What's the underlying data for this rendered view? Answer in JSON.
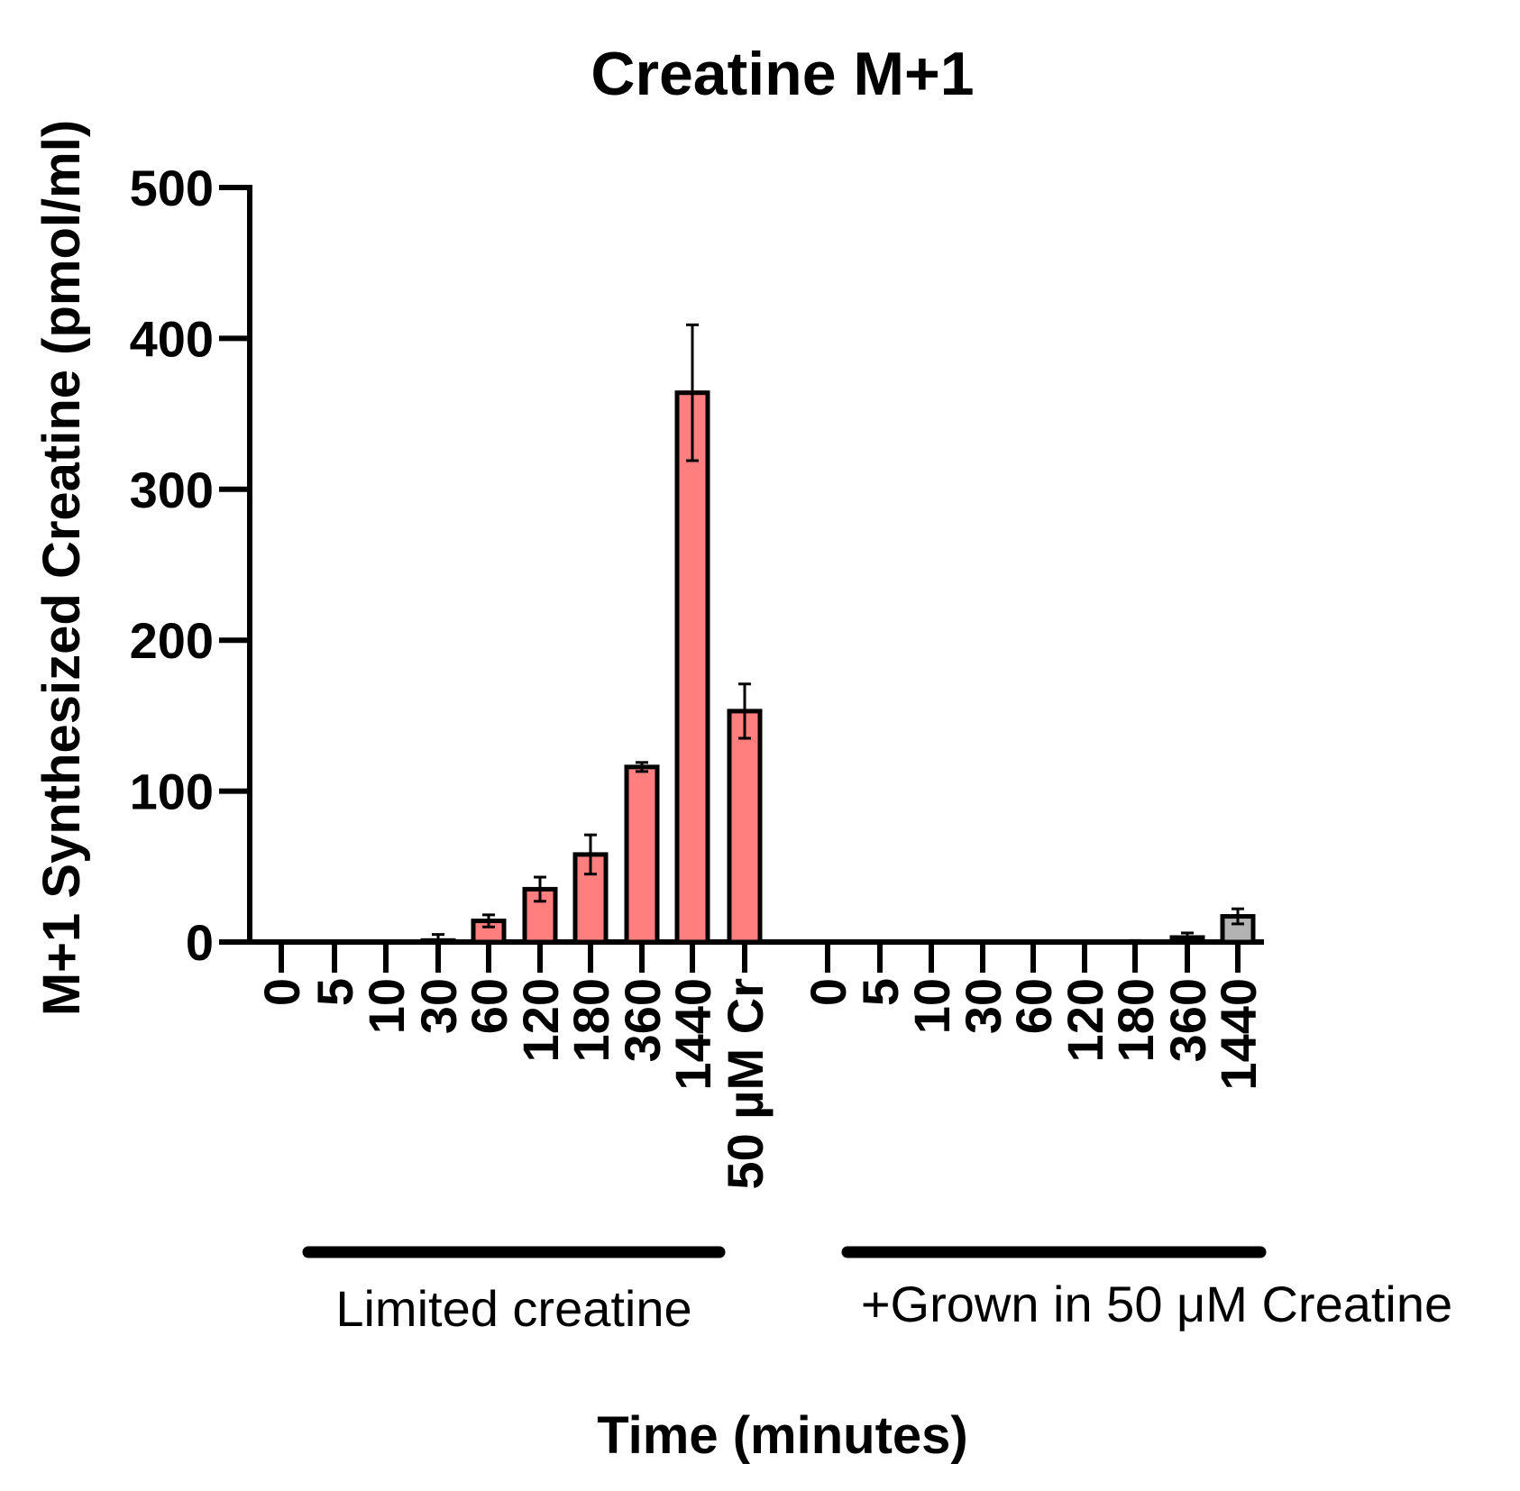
{
  "chart_data": {
    "type": "bar",
    "title": "Creatine M+1",
    "xlabel": "Time (minutes)",
    "ylabel": "M+1 Synthesized Creatine (pmol/ml)",
    "ylim": [
      0,
      500
    ],
    "yticks": [
      "0",
      "100",
      "200",
      "300",
      "400",
      "500"
    ],
    "grid": false,
    "groups": [
      {
        "label": "Limited creatine",
        "color": "#ff7f7f",
        "categories": [
          "0",
          "5",
          "10",
          "30",
          "60",
          "120",
          "180",
          "360",
          "1440",
          "50 µM Cr"
        ],
        "values": [
          0,
          0,
          0,
          1,
          14,
          35,
          58,
          116,
          364,
          153
        ],
        "errors": [
          0,
          0,
          0,
          4,
          4,
          8,
          13,
          3,
          45,
          18
        ]
      },
      {
        "label": "+Grown in 50 μM Creatine",
        "color": "#b3b3b3",
        "categories": [
          "0",
          "5",
          "10",
          "30",
          "60",
          "120",
          "180",
          "360",
          "1440"
        ],
        "values": [
          0,
          0,
          0,
          0,
          0,
          0,
          0,
          3,
          17
        ],
        "errors": [
          0,
          0,
          0,
          0,
          0,
          0,
          1,
          3,
          5
        ]
      }
    ]
  }
}
